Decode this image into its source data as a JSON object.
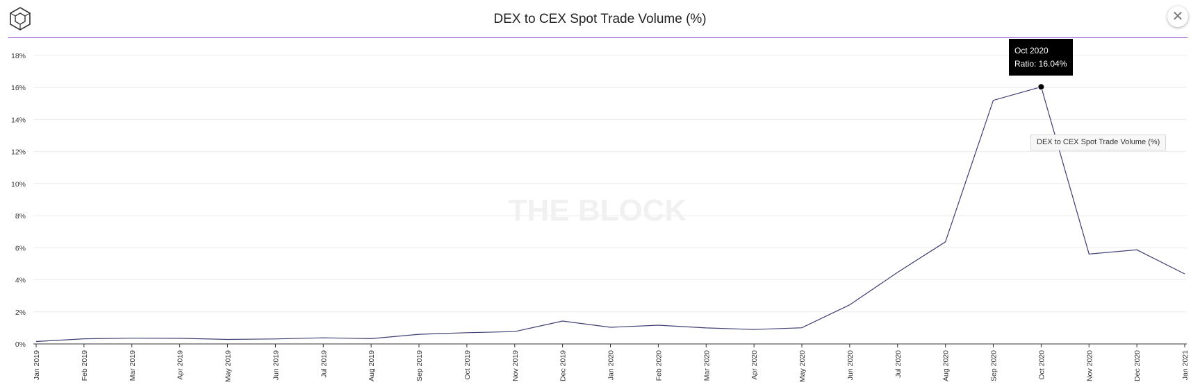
{
  "header": {
    "title": "DEX to CEX Spot Trade Volume (%)",
    "close_icon": "close-icon",
    "logo_icon": "the-block-logo-icon"
  },
  "watermark": "THE BLOCK",
  "tooltip": {
    "month": "Oct 2020",
    "value_text": "Ratio: 16.04%"
  },
  "legend": {
    "label": "DEX to CEX Spot Trade Volume (%)"
  },
  "colors": {
    "line": "#3d3d72",
    "accent_rule": "#8e44c9",
    "grid": "#ececec",
    "tooltip_bg": "#000000"
  },
  "chart_data": {
    "type": "line",
    "x": [
      "Jan 2019",
      "Feb 2019",
      "Mar 2019",
      "Apr 2019",
      "May 2019",
      "Jun 2019",
      "Jul 2019",
      "Aug 2019",
      "Sep 2019",
      "Oct 2019",
      "Nov 2019",
      "Dec 2019",
      "Jan 2020",
      "Feb 2020",
      "Mar 2020",
      "Apr 2020",
      "May 2020",
      "Jun 2020",
      "Jul 2020",
      "Aug 2020",
      "Sep 2020",
      "Oct 2020",
      "Nov 2020",
      "Dec 2020",
      "Jan 2021"
    ],
    "series": [
      {
        "name": "DEX to CEX Spot Trade Volume (%)",
        "values": [
          0.15,
          0.32,
          0.36,
          0.35,
          0.28,
          0.31,
          0.38,
          0.33,
          0.6,
          0.7,
          0.77,
          1.43,
          1.04,
          1.17,
          1.0,
          0.9,
          1.01,
          2.44,
          4.47,
          6.37,
          15.2,
          16.04,
          5.61,
          5.87,
          4.37
        ]
      }
    ],
    "y_ticks": [
      "0%",
      "2%",
      "4%",
      "6%",
      "8%",
      "10%",
      "12%",
      "14%",
      "16%",
      "18%"
    ],
    "ylim": [
      0,
      18
    ],
    "grid": true,
    "legend_position": "right",
    "highlighted_index": 21
  }
}
